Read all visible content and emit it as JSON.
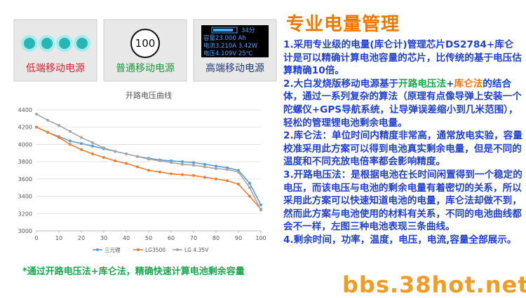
{
  "panels": [
    {
      "label": "低端移动电源"
    },
    {
      "label": "普通移动电源",
      "display": "100"
    },
    {
      "label": "高端移动电源",
      "display_lines": [
        "34分",
        "容量23.000  Ah",
        "电流3.210A 3.42W",
        "电压4.109V 25℃"
      ]
    }
  ],
  "chart_data": {
    "type": "line",
    "title": "开路电压曲线",
    "x": [
      0,
      5,
      10,
      15,
      20,
      25,
      30,
      35,
      40,
      45,
      50,
      55,
      60,
      65,
      70,
      75,
      80,
      85,
      90,
      95,
      100
    ],
    "series": [
      {
        "name": "三元锂",
        "color": "#5b9bd5",
        "values": [
          4200,
          4140,
          4090,
          4040,
          4010,
          3980,
          3950,
          3920,
          3890,
          3860,
          3840,
          3820,
          3810,
          3800,
          3790,
          3770,
          3750,
          3730,
          3700,
          3550,
          3300
        ]
      },
      {
        "name": "LG3500",
        "color": "#ed7d31",
        "values": [
          4200,
          4140,
          4080,
          4000,
          3940,
          3890,
          3850,
          3810,
          3780,
          3740,
          3700,
          3680,
          3660,
          3650,
          3640,
          3620,
          3600,
          3580,
          3540,
          3400,
          3250
        ]
      },
      {
        "name": "LG 4.35V",
        "color": "#a5a5a5",
        "values": [
          4350,
          4280,
          4220,
          4150,
          4080,
          4020,
          3960,
          3920,
          3890,
          3860,
          3830,
          3810,
          3790,
          3770,
          3760,
          3740,
          3720,
          3710,
          3680,
          3500,
          3240
        ]
      }
    ],
    "xlim": [
      0,
      100
    ],
    "xticks": [
      0,
      10,
      20,
      30,
      40,
      50,
      60,
      70,
      80,
      90,
      100
    ],
    "ylim": [
      3000,
      4400
    ],
    "yticks": [
      3000,
      3200,
      3400,
      3600,
      3800,
      4000,
      4200,
      4400
    ],
    "grid": true,
    "legend": "bottom"
  },
  "caption": "*通过开路电压法+库仑法，精确快速计算电池剩余容量",
  "text_panel": {
    "title": "专业电量管理",
    "paragraphs": [
      [
        "1.采用专业级的电量(库仑计)管理芯片DS2784+库仑计是可以精确计算电池容量的芯片，比传统的基于电压估算精确10倍。"
      ],
      [
        "2.大白发烧版移动电源基于",
        "开路电压法",
        "+",
        "库仑法",
        "的结合体，通过一系列复杂的算法（原理有点像导弹上安装一个陀螺仪+GPS导航系统，让导弹误差缩小到几米范围），轻松的管理锂电池剩余电量。"
      ],
      [
        "2.库仑法：单位时间内精度非常高，通常放电实验，容量校准采用此方案可以得到电池真实剩余电量，但是不同的温度和不同充放电倍率都会影响精度。"
      ],
      [
        "3.开路电压法：是根据电池在长时间闲置得到一个稳定的电压，而该电压与电池的剩余电量有着密切的关系，所以采用此方案可以快速知道电池的电量，库仑法却做不到，然而此方案与电池使用的材料有关系，不同的电池曲线都会不一样，左图三种电池表现三条曲线。"
      ],
      [
        "4.剩余时间，功率，温度，电压，电流,容量全部展示。"
      ]
    ]
  },
  "watermark": "bbs.38hot.net"
}
